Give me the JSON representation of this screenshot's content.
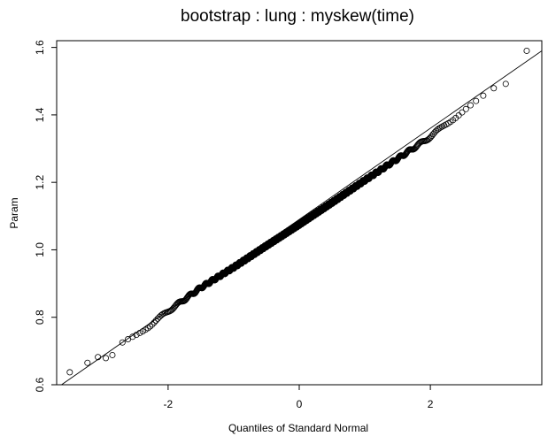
{
  "chart_data": {
    "type": "scatter",
    "title": "bootstrap : lung : myskew(time)",
    "xlabel": "Quantiles of Standard Normal",
    "ylabel": "Param",
    "xlim": [
      -3.7,
      3.7
    ],
    "ylim": [
      0.6,
      1.62
    ],
    "x_ticks": [
      -2,
      0,
      2
    ],
    "x_tick_labels": [
      "-2",
      "0",
      "2"
    ],
    "y_ticks": [
      0.6,
      0.8,
      1.0,
      1.2,
      1.4,
      1.6
    ],
    "y_tick_labels": [
      "0.6",
      "0.8",
      "1.0",
      "1.2",
      "1.4",
      "1.6"
    ],
    "grid": false,
    "legend": "none",
    "reference_line": {
      "x": [
        -3.7,
        3.7
      ],
      "y": [
        0.59,
        1.59
      ]
    },
    "series": [
      {
        "marker": "open-circle",
        "curve": {
          "x": [
            -3.5,
            -3.25,
            -3.0,
            -2.75,
            -2.5,
            -2.25,
            -2.0,
            -1.5,
            -1.0,
            -0.5,
            0.0,
            0.5,
            1.0,
            1.5,
            2.0,
            2.25,
            2.5,
            2.75,
            3.0,
            3.25,
            3.5
          ],
          "y": [
            0.637,
            0.665,
            0.684,
            0.715,
            0.745,
            0.78,
            0.818,
            0.888,
            0.948,
            1.012,
            1.075,
            1.14,
            1.206,
            1.27,
            1.335,
            1.375,
            1.41,
            1.445,
            1.48,
            1.52,
            1.59
          ]
        },
        "outliers": [
          {
            "x": -3.5,
            "y": 0.637
          },
          {
            "x": -3.23,
            "y": 0.665
          },
          {
            "x": -3.07,
            "y": 0.682
          },
          {
            "x": -2.95,
            "y": 0.679
          },
          {
            "x": -2.85,
            "y": 0.688
          },
          {
            "x": 3.15,
            "y": 1.492
          },
          {
            "x": 3.47,
            "y": 1.59
          }
        ]
      }
    ]
  }
}
